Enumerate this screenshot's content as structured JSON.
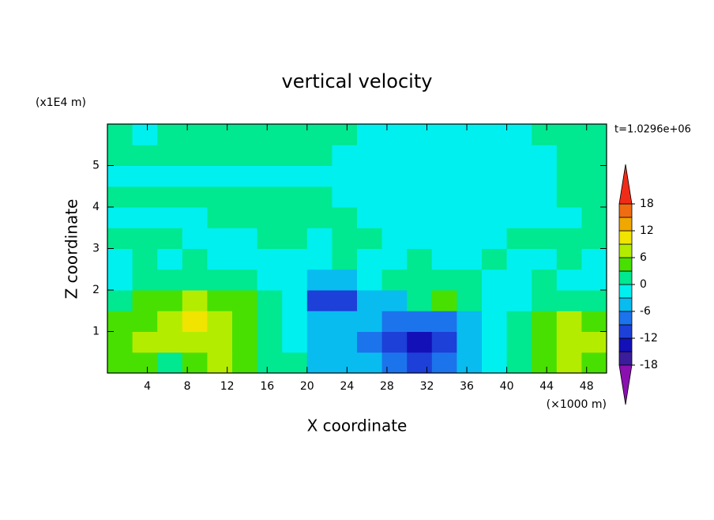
{
  "chart_data": {
    "type": "contour",
    "title": "vertical velocity",
    "x_label": "X coordinate",
    "y_label": "Z coordinate",
    "x_unit": "(×1000 m)",
    "y_unit": "(x1E4 m)",
    "annotation": "t=1.0296e+06",
    "xlim": [
      0,
      50
    ],
    "ylim": [
      0,
      6
    ],
    "xticks": [
      4,
      8,
      12,
      16,
      20,
      24,
      28,
      32,
      36,
      40,
      44,
      48
    ],
    "yticks": [
      1,
      2,
      3,
      4,
      5
    ],
    "x": [
      1.25,
      3.75,
      6.25,
      8.75,
      11.25,
      13.75,
      16.25,
      18.75,
      21.25,
      23.75,
      26.25,
      28.75,
      31.25,
      33.75,
      36.25,
      38.75,
      41.25,
      43.75,
      46.25,
      48.75
    ],
    "y": [
      0.25,
      0.75,
      1.25,
      1.75,
      2.25,
      2.75,
      3.25,
      3.75,
      4.25,
      4.75,
      5.25,
      5.75
    ],
    "z": [
      [
        3,
        4,
        2,
        5,
        6,
        4,
        2,
        0,
        -4,
        -5,
        -6,
        -8,
        -10,
        -7,
        -4,
        -2,
        1,
        4,
        6,
        5
      ],
      [
        5,
        6,
        7,
        8,
        7,
        5,
        2,
        -1,
        -4,
        -5,
        -7,
        -11,
        -14,
        -10,
        -5,
        -2,
        1,
        5,
        8,
        7
      ],
      [
        4,
        5,
        7,
        9,
        8,
        5,
        2,
        -2,
        -4,
        -5,
        -6,
        -9,
        -9,
        -7,
        -4,
        -1,
        1,
        4,
        6,
        4
      ],
      [
        2,
        4,
        5,
        6,
        5,
        3,
        1,
        -3,
        -11,
        -10,
        -6,
        -4,
        1,
        3,
        1,
        -3,
        -1,
        1,
        2,
        1
      ],
      [
        -1,
        1,
        2,
        2,
        1,
        1,
        -1,
        -2,
        -5,
        -4,
        -2,
        0,
        0,
        1,
        0,
        -2,
        -1,
        0,
        -1,
        -1
      ],
      [
        -1,
        0,
        -1,
        1,
        -1,
        -1,
        -1,
        -1,
        -1,
        0,
        -1,
        -1,
        1,
        -1,
        -1,
        0,
        -1,
        -1,
        1,
        -1
      ],
      [
        1,
        1,
        1,
        -1,
        -1,
        -1,
        1,
        1,
        -1,
        1,
        1,
        -1,
        -1,
        -1,
        -1,
        -1,
        1,
        1,
        1,
        1
      ],
      [
        -1,
        -1,
        -1,
        -1,
        1,
        1,
        1,
        1,
        1,
        1,
        -1,
        -1,
        -1,
        -1,
        -1,
        -1,
        -1,
        -1,
        -1,
        1
      ],
      [
        1,
        1,
        1,
        1,
        1,
        1,
        1,
        1,
        1,
        -1,
        -1,
        -1,
        -1,
        -1,
        -1,
        -1,
        -1,
        -1,
        1,
        1
      ],
      [
        -1,
        -1,
        -1,
        -1,
        -1,
        -1,
        -1,
        -1,
        -1,
        -1,
        -1,
        -1,
        -1,
        -1,
        -1,
        -1,
        -1,
        -1,
        1,
        1
      ],
      [
        1,
        1,
        1,
        1,
        1,
        1,
        1,
        1,
        1,
        -1,
        -1,
        -1,
        -1,
        -1,
        -1,
        -1,
        -1,
        -1,
        1,
        1
      ],
      [
        1,
        -1,
        1,
        1,
        1,
        1,
        1,
        1,
        1,
        1,
        -1,
        -1,
        -1,
        -1,
        -1,
        -1,
        -1,
        1,
        1,
        1
      ]
    ],
    "levels": [
      -18,
      -15,
      -12,
      -9,
      -6,
      -3,
      0,
      3,
      6,
      9,
      12,
      15,
      18
    ],
    "colorbar_ticks": [
      -18,
      -12,
      -6,
      0,
      6,
      12,
      18
    ],
    "colors": [
      "#8a10b0",
      "#3a1c9c",
      "#1410b8",
      "#1c40d8",
      "#1c74ec",
      "#08bcf0",
      "#00f0f0",
      "#00e890",
      "#48e000",
      "#b4ec00",
      "#f0e400",
      "#f0a800",
      "#f06c10",
      "#f02c18",
      "#f0a4a4"
    ]
  }
}
